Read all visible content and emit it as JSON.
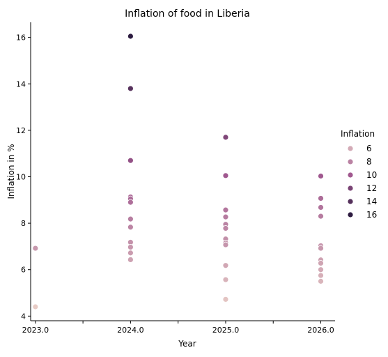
{
  "chart_data": {
    "type": "scatter",
    "title": "Inflation of food in Liberia",
    "xlabel": "Year",
    "ylabel": "Inflation in %",
    "xlim": [
      2022.95,
      2026.15
    ],
    "ylim": [
      3.8,
      16.65
    ],
    "x_ticks": [
      2023.0,
      2023.5,
      2024.0,
      2024.5,
      2025.0,
      2025.5,
      2026.0
    ],
    "x_tick_labels": [
      "2023.0",
      "",
      "2024.0",
      "",
      "2025.0",
      "",
      "2026.0"
    ],
    "y_ticks": [
      4,
      6,
      8,
      10,
      12,
      14,
      16
    ],
    "y_tick_labels": [
      "4",
      "6",
      "8",
      "10",
      "12",
      "14",
      "16"
    ],
    "grid": false,
    "legend": {
      "title": "Inflation",
      "placement": "right",
      "entries": [
        {
          "label": "6",
          "value": 6
        },
        {
          "label": "8",
          "value": 8
        },
        {
          "label": "10",
          "value": 10
        },
        {
          "label": "12",
          "value": 12
        },
        {
          "label": "14",
          "value": 14
        },
        {
          "label": "16",
          "value": 16
        }
      ]
    },
    "color_scale": {
      "min": 4.0,
      "max": 16.1,
      "low_color": "#ecd3c9",
      "mid_color": "#a0588f",
      "high_color": "#2b1a3f"
    },
    "points": [
      {
        "x": 2023.0,
        "y": 6.92
      },
      {
        "x": 2023.0,
        "y": 4.4
      },
      {
        "x": 2024.0,
        "y": 16.05
      },
      {
        "x": 2024.0,
        "y": 13.8
      },
      {
        "x": 2024.0,
        "y": 10.7
      },
      {
        "x": 2024.0,
        "y": 9.13
      },
      {
        "x": 2024.0,
        "y": 9.05
      },
      {
        "x": 2024.0,
        "y": 8.9
      },
      {
        "x": 2024.0,
        "y": 8.18
      },
      {
        "x": 2024.0,
        "y": 7.83
      },
      {
        "x": 2024.0,
        "y": 7.18
      },
      {
        "x": 2024.0,
        "y": 6.97
      },
      {
        "x": 2024.0,
        "y": 6.72
      },
      {
        "x": 2024.0,
        "y": 6.43
      },
      {
        "x": 2025.0,
        "y": 11.7
      },
      {
        "x": 2025.0,
        "y": 10.05
      },
      {
        "x": 2025.0,
        "y": 8.57
      },
      {
        "x": 2025.0,
        "y": 8.27
      },
      {
        "x": 2025.0,
        "y": 7.95
      },
      {
        "x": 2025.0,
        "y": 7.78
      },
      {
        "x": 2025.0,
        "y": 7.32
      },
      {
        "x": 2025.0,
        "y": 7.15
      },
      {
        "x": 2025.0,
        "y": 7.07
      },
      {
        "x": 2025.0,
        "y": 6.18
      },
      {
        "x": 2025.0,
        "y": 5.57
      },
      {
        "x": 2025.0,
        "y": 4.72
      },
      {
        "x": 2026.0,
        "y": 10.03
      },
      {
        "x": 2026.0,
        "y": 9.07
      },
      {
        "x": 2026.0,
        "y": 8.68
      },
      {
        "x": 2026.0,
        "y": 8.3
      },
      {
        "x": 2026.0,
        "y": 7.03
      },
      {
        "x": 2026.0,
        "y": 6.92
      },
      {
        "x": 2026.0,
        "y": 6.42
      },
      {
        "x": 2026.0,
        "y": 6.28
      },
      {
        "x": 2026.0,
        "y": 6.0
      },
      {
        "x": 2026.0,
        "y": 5.75
      },
      {
        "x": 2026.0,
        "y": 5.5
      }
    ]
  }
}
